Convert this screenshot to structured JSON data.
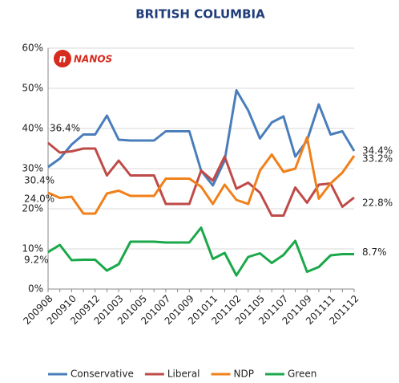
{
  "chart_data": {
    "type": "line",
    "title": "BRITISH COLUMBIA",
    "logo": "NANOS",
    "categories": [
      "200908",
      null,
      "200910",
      null,
      "200912",
      null,
      "201003",
      null,
      "201005",
      null,
      "201007",
      null,
      "201009",
      null,
      "201011",
      null,
      "201102",
      null,
      "201105",
      null,
      "201107",
      null,
      "201109",
      null,
      "201111",
      null,
      "201112"
    ],
    "series": [
      {
        "name": "Conservative",
        "color": "#4a7ebb",
        "values": [
          30.4,
          32.5,
          36.0,
          38.5,
          38.5,
          43.2,
          37.2,
          37.0,
          37.0,
          37.0,
          39.3,
          39.3,
          39.3,
          29.5,
          25.8,
          32.0,
          49.5,
          44.5,
          37.5,
          41.5,
          43.0,
          33.0,
          37.0,
          46.0,
          38.5,
          39.3,
          34.4
        ],
        "value_labels": [
          "30.4%",
          null,
          null,
          null,
          null,
          null,
          null,
          null,
          null,
          null,
          null,
          null,
          null,
          null,
          null,
          null,
          null,
          null,
          null,
          null,
          null,
          null,
          null,
          null,
          null,
          null,
          "34.4%"
        ]
      },
      {
        "name": "Liberal",
        "color": "#be4b48",
        "values": [
          36.4,
          34.0,
          34.3,
          35.0,
          35.0,
          28.3,
          32.0,
          28.3,
          28.3,
          28.3,
          21.2,
          21.2,
          21.2,
          29.5,
          27.0,
          33.0,
          25.0,
          26.5,
          24.0,
          18.3,
          18.3,
          25.3,
          21.5,
          26.0,
          26.3,
          20.5,
          22.8
        ],
        "value_labels": [
          "36.4%",
          null,
          null,
          null,
          null,
          null,
          null,
          null,
          null,
          null,
          null,
          null,
          null,
          null,
          null,
          null,
          null,
          null,
          null,
          null,
          null,
          null,
          null,
          null,
          null,
          null,
          "22.8%"
        ]
      },
      {
        "name": "NDP",
        "color": "#f0801a",
        "values": [
          24.0,
          22.7,
          23.0,
          18.8,
          18.8,
          23.8,
          24.5,
          23.2,
          23.2,
          23.2,
          27.5,
          27.5,
          27.5,
          25.5,
          21.2,
          26.0,
          22.2,
          21.2,
          29.5,
          33.5,
          29.2,
          30.0,
          37.8,
          22.5,
          26.3,
          29.0,
          33.2
        ],
        "value_labels": [
          "24.0%",
          null,
          null,
          null,
          null,
          null,
          null,
          null,
          null,
          null,
          null,
          null,
          null,
          null,
          null,
          null,
          null,
          null,
          null,
          null,
          null,
          null,
          null,
          null,
          null,
          null,
          "33.2%"
        ]
      },
      {
        "name": "Green",
        "color": "#1aa84a",
        "values": [
          9.2,
          11.0,
          7.2,
          7.3,
          7.3,
          4.6,
          6.2,
          11.8,
          11.8,
          11.8,
          11.6,
          11.6,
          11.6,
          15.3,
          7.5,
          9.0,
          3.4,
          8.0,
          8.9,
          6.5,
          8.5,
          12.0,
          4.3,
          5.5,
          8.4,
          8.7,
          8.7
        ],
        "value_labels": [
          "9.2%",
          null,
          null,
          null,
          null,
          null,
          null,
          null,
          null,
          null,
          null,
          null,
          null,
          null,
          null,
          null,
          null,
          null,
          null,
          null,
          null,
          null,
          null,
          null,
          null,
          null,
          "8.7%"
        ]
      }
    ],
    "ylim": [
      0,
      60
    ],
    "yticks": [
      {
        "value": 0,
        "label": "0%"
      },
      {
        "value": 10,
        "label": "10%"
      },
      {
        "value": 20,
        "label": "20%"
      },
      {
        "value": 30,
        "label": "30%"
      },
      {
        "value": 40,
        "label": "40%"
      },
      {
        "value": 50,
        "label": "50%"
      },
      {
        "value": 60,
        "label": "60%"
      }
    ],
    "grid": true,
    "legend": "bottom"
  }
}
